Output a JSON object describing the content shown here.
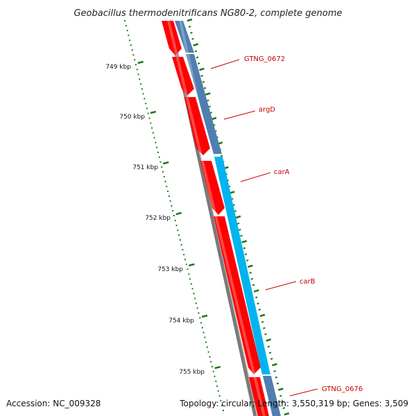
{
  "title": "Geobacillus thermodenitrificans NG80-2, complete genome",
  "footer": {
    "accession": "Accession: NC_009328",
    "summary": "Topology: circular; Length: 3,550,319 bp; Genes: 3,509"
  },
  "scale_labels": [
    "749 kbp",
    "750 kbp",
    "751 kbp",
    "752 kbp",
    "753 kbp",
    "754 kbp",
    "755 kbp"
  ],
  "genes": [
    {
      "name": "GTNG_0672",
      "color": "#cc0000"
    },
    {
      "name": "argD",
      "color": "#cc0000"
    },
    {
      "name": "carA",
      "color": "#cc0000"
    },
    {
      "name": "carB",
      "color": "#cc0000"
    },
    {
      "name": "GTNG_0676",
      "color": "#cc0000"
    }
  ],
  "colors": {
    "cds": "#ff0000",
    "cds_highlight": "#ff6a6a",
    "backbone": "#808080",
    "gene_strip": "#4f7fb0",
    "gene_strip_highlight": "#00b4f0",
    "ticks": "#1a7a1a",
    "label_line": "#cc0000"
  }
}
